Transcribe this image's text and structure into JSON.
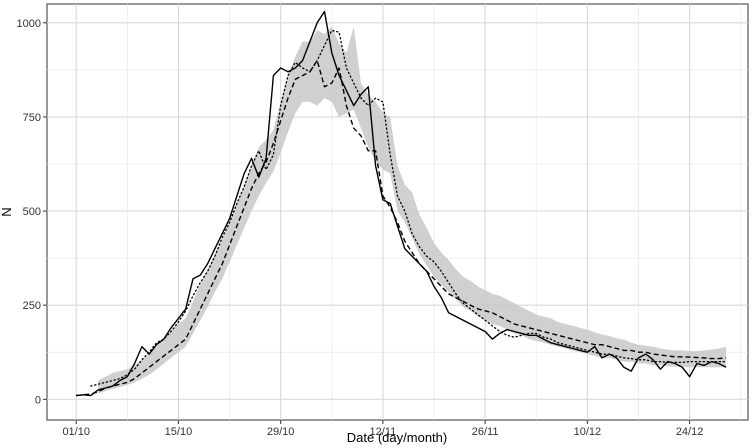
{
  "chart_data": {
    "type": "line",
    "xlabel": "Date (day/month)",
    "ylabel": "N",
    "ylim": [
      0,
      1050
    ],
    "y_ticks": [
      0,
      250,
      500,
      750,
      1000
    ],
    "x_ticks": [
      "01/10",
      "15/10",
      "29/10",
      "12/11",
      "26/11",
      "10/12",
      "24/12"
    ],
    "x_tick_days": [
      0,
      14,
      28,
      42,
      56,
      70,
      84
    ],
    "xlim_days": [
      -4,
      92
    ],
    "grid": true,
    "legend": "none",
    "series": [
      {
        "style": "solid",
        "x": [
          0,
          1,
          2,
          3,
          4,
          5,
          6,
          7,
          8,
          9,
          10,
          11,
          12,
          13,
          14,
          15,
          16,
          17,
          18,
          19,
          20,
          21,
          22,
          23,
          24,
          25,
          26,
          27,
          28,
          29,
          30,
          31,
          32,
          33,
          34,
          35,
          36,
          37,
          38,
          39,
          40,
          41,
          42,
          43,
          44,
          45,
          46,
          47,
          48,
          49,
          50,
          51,
          52,
          53,
          54,
          55,
          56,
          57,
          58,
          59,
          60,
          61,
          62,
          63,
          64,
          65,
          66,
          67,
          68,
          69,
          70,
          71,
          72,
          73,
          74,
          75,
          76,
          77,
          78,
          79,
          80,
          81,
          82,
          83,
          84,
          85,
          86,
          87,
          88,
          89
        ],
        "values": [
          10,
          12,
          10,
          25,
          30,
          35,
          50,
          60,
          95,
          140,
          120,
          145,
          160,
          190,
          215,
          240,
          320,
          330,
          360,
          400,
          440,
          480,
          540,
          600,
          640,
          590,
          640,
          860,
          880,
          870,
          880,
          900,
          950,
          1000,
          1030,
          920,
          860,
          820,
          780,
          810,
          830,
          620,
          530,
          520,
          460,
          400,
          380,
          360,
          340,
          300,
          270,
          230,
          220,
          210,
          200,
          190,
          180,
          160,
          175,
          185,
          180,
          175,
          170,
          170,
          160,
          150,
          145,
          140,
          135,
          130,
          125,
          140,
          110,
          120,
          110,
          85,
          75,
          110,
          120,
          105,
          80,
          100,
          95,
          85,
          60,
          95,
          90,
          100,
          95,
          85
        ]
      },
      {
        "style": "dotted",
        "x": [
          2,
          3,
          4,
          5,
          6,
          7,
          8,
          9,
          10,
          11,
          12,
          13,
          14,
          15,
          16,
          17,
          18,
          19,
          20,
          21,
          22,
          23,
          24,
          25,
          26,
          27,
          28,
          29,
          30,
          31,
          32,
          33,
          34,
          35,
          36,
          37,
          38,
          39,
          40,
          41,
          42,
          43,
          44,
          45,
          46,
          47,
          48,
          49,
          50,
          51,
          52,
          53,
          54,
          55,
          56,
          57,
          58,
          59,
          60,
          61,
          62,
          63,
          64,
          65,
          66,
          67,
          68,
          69,
          70,
          71,
          72,
          73,
          74,
          75,
          76,
          77,
          78,
          79,
          80,
          81,
          82,
          83,
          84,
          85,
          86,
          87,
          88,
          89
        ],
        "values": [
          35,
          40,
          45,
          50,
          55,
          65,
          80,
          105,
          125,
          150,
          160,
          180,
          205,
          235,
          275,
          310,
          340,
          380,
          430,
          470,
          520,
          565,
          620,
          660,
          610,
          650,
          780,
          860,
          895,
          880,
          870,
          900,
          940,
          980,
          975,
          880,
          840,
          800,
          780,
          800,
          790,
          650,
          540,
          500,
          440,
          405,
          380,
          365,
          340,
          310,
          280,
          255,
          240,
          225,
          210,
          195,
          180,
          170,
          165,
          170,
          175,
          175,
          165,
          160,
          150,
          145,
          140,
          135,
          130,
          125,
          120,
          120,
          115,
          110,
          108,
          105,
          105,
          100,
          100,
          98,
          98,
          98,
          100,
          100,
          100,
          100,
          100,
          100
        ]
      },
      {
        "style": "dashed",
        "x": [
          0,
          1,
          2,
          3,
          4,
          5,
          6,
          7,
          8,
          9,
          10,
          11,
          12,
          13,
          14,
          15,
          16,
          17,
          18,
          19,
          20,
          21,
          22,
          23,
          24,
          25,
          26,
          27,
          28,
          29,
          30,
          31,
          32,
          33,
          34,
          35,
          36,
          37,
          38,
          39,
          40,
          41,
          42,
          43,
          44,
          45,
          46,
          47,
          48,
          49,
          50,
          51,
          52,
          53,
          54,
          55,
          56,
          57,
          58,
          59,
          60,
          61,
          62,
          63,
          64,
          65,
          66,
          67,
          68,
          69,
          70,
          71,
          72,
          73,
          74,
          75,
          76,
          77,
          78,
          79,
          80,
          81,
          82,
          83,
          84,
          85,
          86,
          87,
          88,
          89
        ],
        "values": [
          10,
          12,
          14,
          20,
          30,
          35,
          40,
          45,
          55,
          70,
          85,
          100,
          115,
          130,
          145,
          160,
          200,
          240,
          280,
          320,
          360,
          410,
          460,
          510,
          560,
          600,
          630,
          680,
          740,
          800,
          850,
          860,
          870,
          900,
          830,
          840,
          880,
          780,
          720,
          700,
          660,
          660,
          540,
          510,
          470,
          420,
          390,
          360,
          340,
          320,
          300,
          280,
          270,
          260,
          250,
          240,
          235,
          230,
          220,
          210,
          200,
          195,
          190,
          185,
          180,
          175,
          170,
          165,
          160,
          155,
          150,
          145,
          145,
          140,
          135,
          130,
          130,
          125,
          125,
          120,
          118,
          115,
          113,
          113,
          112,
          111,
          110,
          108,
          108,
          110
        ]
      },
      {
        "style": "band",
        "x": [
          3,
          4,
          5,
          6,
          7,
          8,
          9,
          10,
          11,
          12,
          13,
          14,
          15,
          16,
          17,
          18,
          19,
          20,
          21,
          22,
          23,
          24,
          25,
          26,
          27,
          28,
          29,
          30,
          31,
          32,
          33,
          34,
          35,
          36,
          37,
          38,
          39,
          40,
          41,
          42,
          43,
          44,
          45,
          46,
          47,
          48,
          49,
          50,
          51,
          52,
          53,
          54,
          55,
          56,
          57,
          58,
          59,
          60,
          61,
          62,
          63,
          64,
          65,
          66,
          67,
          68,
          69,
          70,
          71,
          72,
          73,
          74,
          75,
          76,
          77,
          78,
          79,
          80,
          81,
          82,
          83,
          84,
          85,
          86,
          87,
          88,
          89
        ],
        "lower": [
          15,
          22,
          28,
          33,
          38,
          45,
          55,
          65,
          80,
          95,
          110,
          125,
          140,
          175,
          210,
          245,
          285,
          320,
          365,
          410,
          455,
          500,
          540,
          575,
          605,
          655,
          710,
          760,
          790,
          790,
          780,
          800,
          790,
          750,
          760,
          770,
          720,
          670,
          630,
          610,
          600,
          500,
          470,
          430,
          385,
          355,
          325,
          305,
          285,
          265,
          245,
          235,
          220,
          210,
          200,
          195,
          185,
          175,
          170,
          160,
          155,
          150,
          145,
          140,
          135,
          130,
          125,
          120,
          115,
          110,
          110,
          105,
          100,
          100,
          95,
          95,
          90,
          90,
          88,
          87,
          86,
          85,
          85,
          85,
          85,
          85,
          85
        ],
        "upper": [
          50,
          60,
          70,
          75,
          80,
          90,
          105,
          120,
          140,
          160,
          180,
          200,
          215,
          260,
          305,
          345,
          385,
          425,
          470,
          520,
          570,
          620,
          670,
          690,
          715,
          790,
          860,
          910,
          950,
          950,
          980,
          970,
          990,
          945,
          920,
          990,
          840,
          810,
          790,
          760,
          750,
          620,
          570,
          550,
          490,
          455,
          415,
          390,
          370,
          345,
          325,
          315,
          300,
          290,
          280,
          275,
          265,
          255,
          245,
          235,
          225,
          220,
          215,
          205,
          200,
          195,
          190,
          185,
          178,
          172,
          168,
          162,
          158,
          150,
          145,
          142,
          140,
          135,
          132,
          130,
          130,
          128,
          128,
          130,
          132,
          135,
          140
        ]
      }
    ]
  }
}
